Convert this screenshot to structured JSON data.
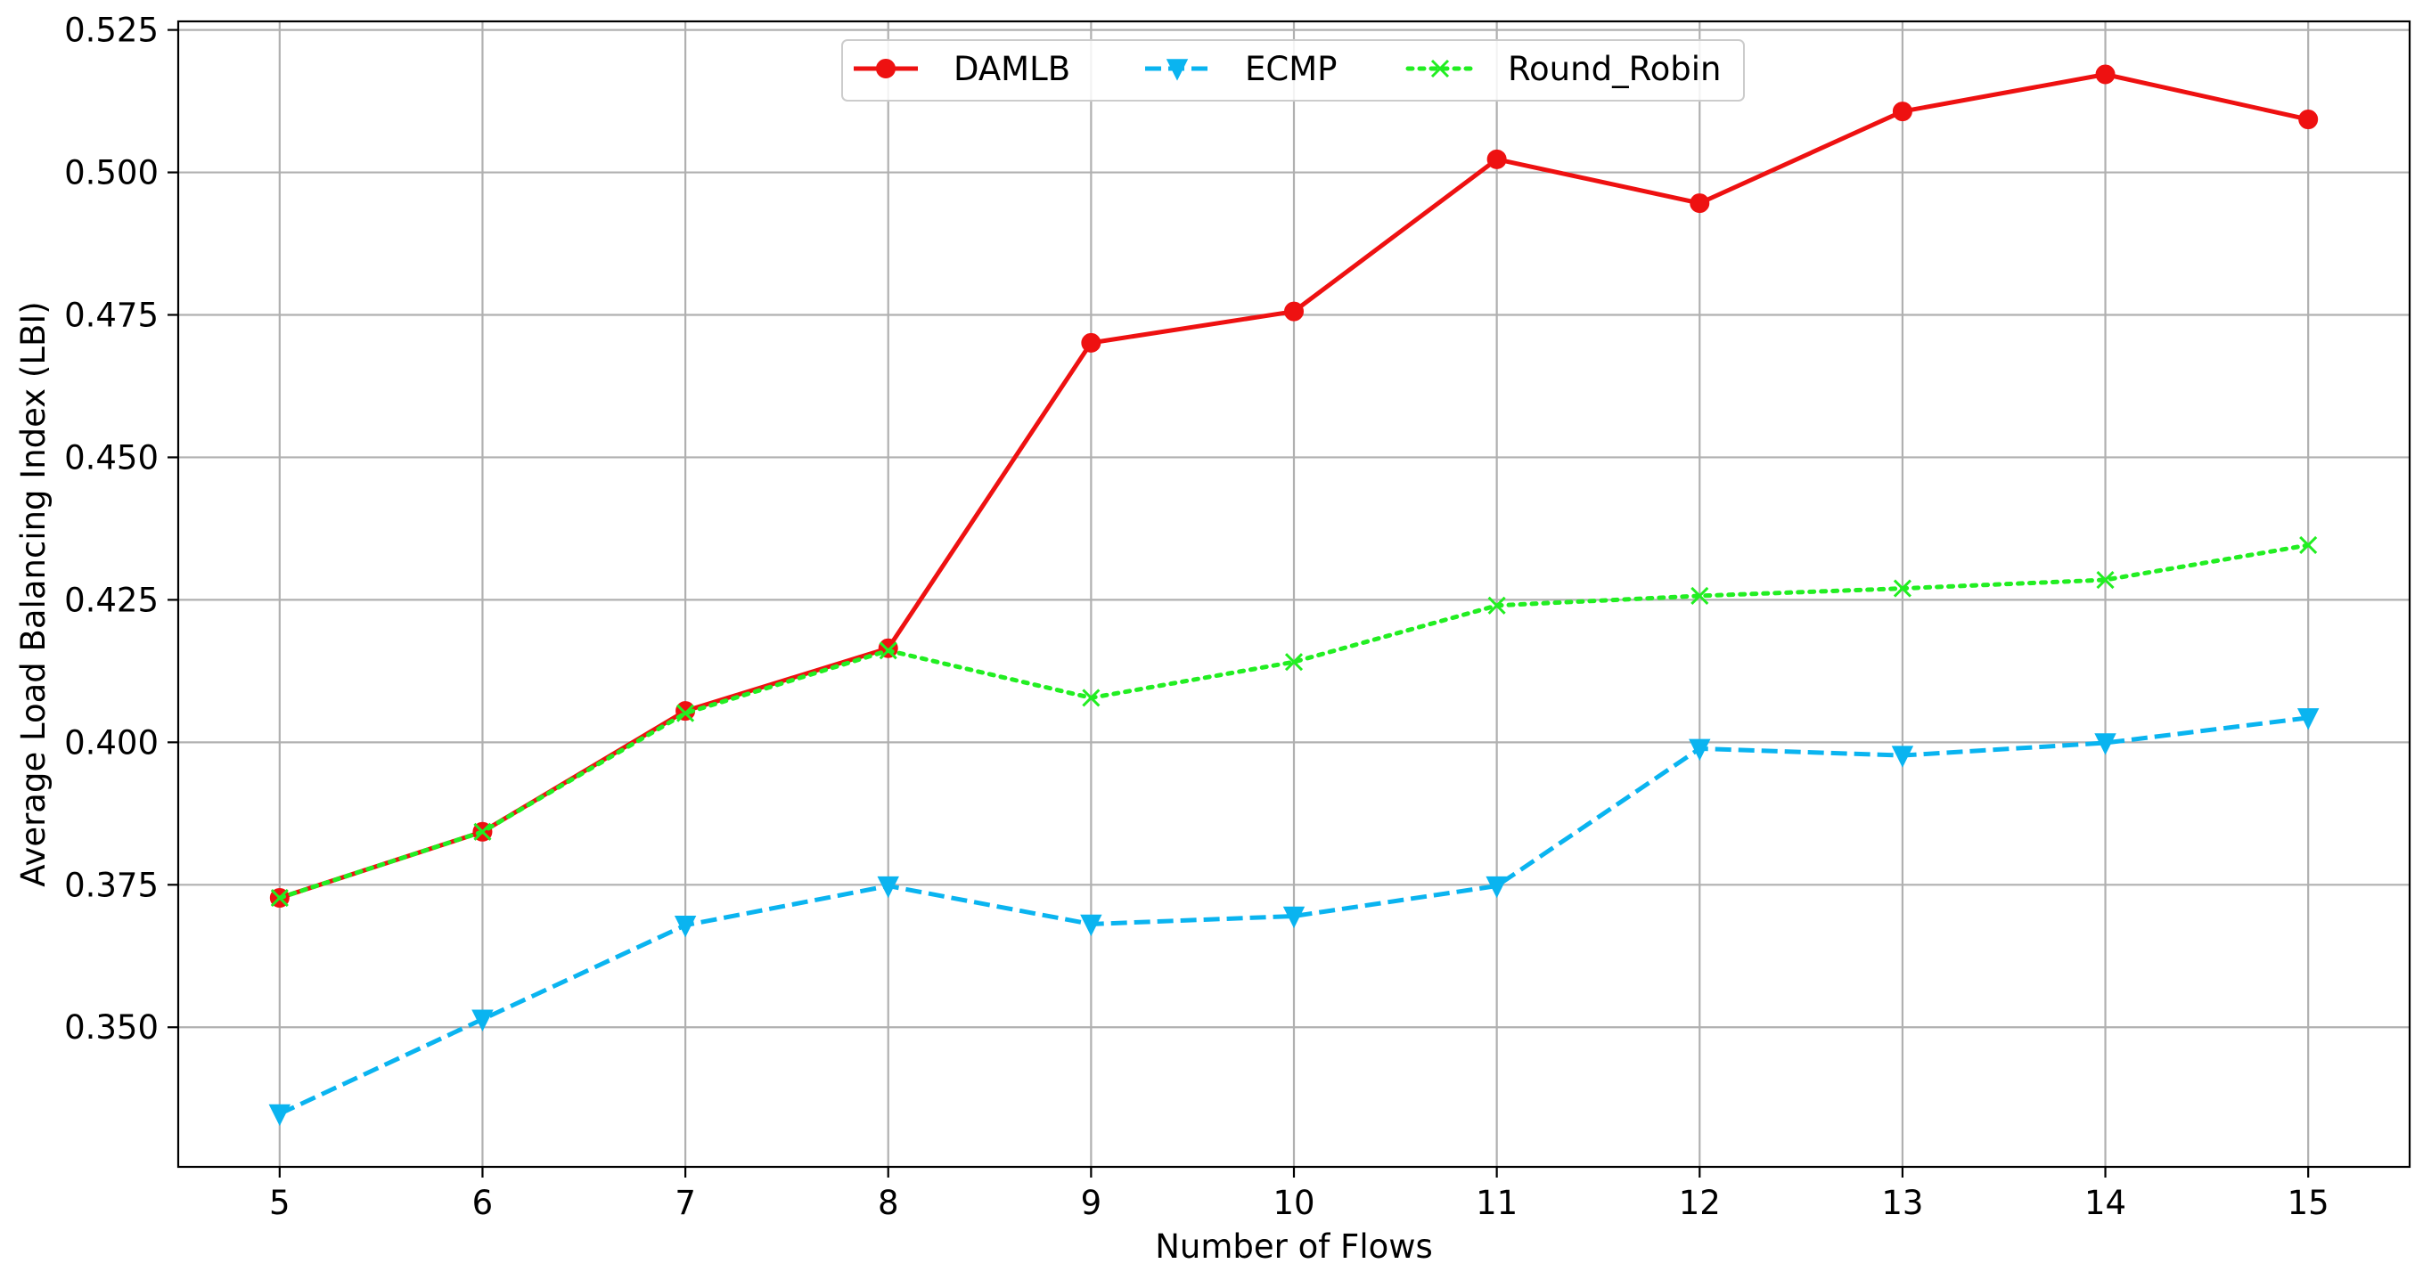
{
  "chart_data": {
    "type": "line",
    "title": "",
    "xlabel": "Number of Flows",
    "ylabel": "Average Load Balancing Index (LBI)",
    "x": [
      5,
      6,
      7,
      8,
      9,
      10,
      11,
      12,
      13,
      14,
      15
    ],
    "xlim": [
      4.5,
      15.5
    ],
    "ylim": [
      0.3255,
      0.5265
    ],
    "yticks": [
      0.35,
      0.375,
      0.4,
      0.425,
      0.45,
      0.475,
      0.5,
      0.525
    ],
    "ytick_labels": [
      "0.350",
      "0.375",
      "0.400",
      "0.425",
      "0.450",
      "0.475",
      "0.500",
      "0.525"
    ],
    "grid": true,
    "legend_position": "top-center",
    "series": [
      {
        "name": "DAMLB",
        "color": "#ee1111",
        "line_style": "solid",
        "marker": "circle",
        "values": [
          0.3727,
          0.3843,
          0.4055,
          0.4165,
          0.4701,
          0.4756,
          0.5023,
          0.4946,
          0.5107,
          0.5172,
          0.5093
        ]
      },
      {
        "name": "ECMP",
        "color": "#0ab4f0",
        "line_style": "dashed",
        "marker": "triangle-down",
        "values": [
          0.3348,
          0.3514,
          0.3679,
          0.3748,
          0.3681,
          0.3695,
          0.3748,
          0.3989,
          0.3977,
          0.3999,
          0.4043
        ]
      },
      {
        "name": "Round_Robin",
        "color": "#22ee22",
        "line_style": "dotted",
        "marker": "x",
        "values": [
          0.3727,
          0.3843,
          0.4051,
          0.4161,
          0.4078,
          0.4141,
          0.424,
          0.4257,
          0.427,
          0.4285,
          0.4346
        ]
      }
    ]
  }
}
